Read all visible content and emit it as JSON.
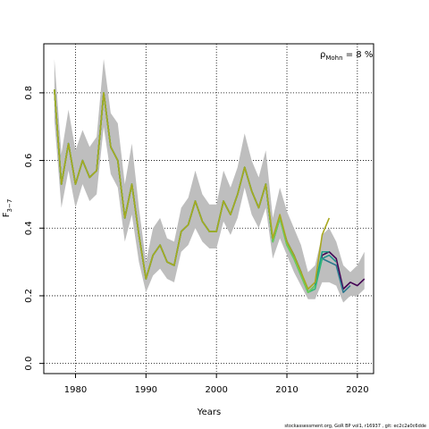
{
  "chart_data": {
    "type": "line",
    "title": "",
    "xlabel": "Years",
    "ylabel_main": "F",
    "ylabel_sub": "3−7",
    "annotation": {
      "rho": "ρ",
      "rho_sub": "Mohn",
      "text": " = 8 %"
    },
    "footer": "stockassessment.org, GoR BP vol1, r16937 , git: ec2c2a0c6dde",
    "xlim": [
      1975.5,
      2022.3
    ],
    "ylim": [
      -0.03,
      0.945
    ],
    "x_ticks": [
      1980,
      1990,
      2000,
      2010,
      2020
    ],
    "y_ticks": [
      0.0,
      0.2,
      0.4,
      0.6,
      0.8
    ],
    "x_tick_labels": [
      "1980",
      "1990",
      "2000",
      "2010",
      "2020"
    ],
    "y_tick_labels": [
      "0.0",
      "0.2",
      "0.4",
      "0.6",
      "0.8"
    ],
    "grid": true,
    "band_color": "#bebebe",
    "band": {
      "x": [
        1977,
        1978,
        1979,
        1980,
        1981,
        1982,
        1983,
        1984,
        1985,
        1986,
        1987,
        1988,
        1989,
        1990,
        1991,
        1992,
        1993,
        1994,
        1995,
        1996,
        1997,
        1998,
        1999,
        2000,
        2001,
        2002,
        2003,
        2004,
        2005,
        2006,
        2007,
        2008,
        2009,
        2010,
        2011,
        2012,
        2013,
        2014,
        2015,
        2016,
        2017,
        2018,
        2019,
        2020,
        2021
      ],
      "upper": [
        0.9,
        0.62,
        0.75,
        0.63,
        0.69,
        0.64,
        0.67,
        0.9,
        0.74,
        0.71,
        0.53,
        0.65,
        0.46,
        0.3,
        0.4,
        0.43,
        0.37,
        0.36,
        0.46,
        0.49,
        0.57,
        0.5,
        0.47,
        0.47,
        0.57,
        0.52,
        0.58,
        0.68,
        0.6,
        0.55,
        0.63,
        0.43,
        0.52,
        0.45,
        0.4,
        0.35,
        0.27,
        0.29,
        0.38,
        0.4,
        0.36,
        0.29,
        0.27,
        0.29,
        0.33
      ],
      "lower": [
        0.72,
        0.46,
        0.57,
        0.46,
        0.53,
        0.48,
        0.5,
        0.7,
        0.56,
        0.52,
        0.36,
        0.44,
        0.3,
        0.21,
        0.26,
        0.28,
        0.25,
        0.24,
        0.33,
        0.35,
        0.4,
        0.36,
        0.34,
        0.34,
        0.42,
        0.38,
        0.43,
        0.52,
        0.44,
        0.4,
        0.46,
        0.31,
        0.37,
        0.32,
        0.27,
        0.23,
        0.19,
        0.19,
        0.24,
        0.24,
        0.23,
        0.18,
        0.2,
        0.2,
        0.22
      ]
    },
    "series": [
      {
        "color": "#440154",
        "x": [
          1977,
          1978,
          1979,
          1980,
          1981,
          1982,
          1983,
          1984,
          1985,
          1986,
          1987,
          1988,
          1989,
          1990,
          1991,
          1992,
          1993,
          1994,
          1995,
          1996,
          1997,
          1998,
          1999,
          2000,
          2001,
          2002,
          2003,
          2004,
          2005,
          2006,
          2007,
          2008,
          2009,
          2010,
          2011,
          2012,
          2013,
          2014,
          2015,
          2016,
          2017,
          2018,
          2019,
          2020,
          2021
        ],
        "values": [
          0.81,
          0.53,
          0.65,
          0.53,
          0.6,
          0.55,
          0.57,
          0.8,
          0.64,
          0.6,
          0.43,
          0.53,
          0.38,
          0.25,
          0.32,
          0.35,
          0.3,
          0.29,
          0.39,
          0.41,
          0.48,
          0.42,
          0.39,
          0.39,
          0.48,
          0.44,
          0.5,
          0.58,
          0.51,
          0.46,
          0.53,
          0.36,
          0.43,
          0.36,
          0.32,
          0.27,
          0.21,
          0.23,
          0.32,
          0.33,
          0.31,
          0.22,
          0.24,
          0.23,
          0.25
        ]
      },
      {
        "color": "#2a788e",
        "x": [
          1977,
          1978,
          1979,
          1980,
          1981,
          1982,
          1983,
          1984,
          1985,
          1986,
          1987,
          1988,
          1989,
          1990,
          1991,
          1992,
          1993,
          1994,
          1995,
          1996,
          1997,
          1998,
          1999,
          2000,
          2001,
          2002,
          2003,
          2004,
          2005,
          2006,
          2007,
          2008,
          2009,
          2010,
          2011,
          2012,
          2013,
          2014,
          2015,
          2016,
          2017,
          2018,
          2019
        ],
        "values": [
          0.81,
          0.53,
          0.65,
          0.53,
          0.6,
          0.55,
          0.57,
          0.8,
          0.64,
          0.6,
          0.43,
          0.53,
          0.38,
          0.25,
          0.32,
          0.35,
          0.3,
          0.29,
          0.39,
          0.41,
          0.48,
          0.42,
          0.39,
          0.39,
          0.48,
          0.44,
          0.5,
          0.58,
          0.51,
          0.46,
          0.53,
          0.36,
          0.43,
          0.36,
          0.32,
          0.27,
          0.21,
          0.23,
          0.31,
          0.3,
          0.29,
          0.21,
          0.23
        ]
      },
      {
        "color": "#21918c",
        "x": [
          1977,
          1978,
          1979,
          1980,
          1981,
          1982,
          1983,
          1984,
          1985,
          1986,
          1987,
          1988,
          1989,
          1990,
          1991,
          1992,
          1993,
          1994,
          1995,
          1996,
          1997,
          1998,
          1999,
          2000,
          2001,
          2002,
          2003,
          2004,
          2005,
          2006,
          2007,
          2008,
          2009,
          2010,
          2011,
          2012,
          2013,
          2014,
          2015,
          2016,
          2017
        ],
        "values": [
          0.81,
          0.53,
          0.65,
          0.53,
          0.6,
          0.55,
          0.57,
          0.8,
          0.64,
          0.6,
          0.43,
          0.53,
          0.38,
          0.25,
          0.32,
          0.35,
          0.3,
          0.29,
          0.39,
          0.41,
          0.48,
          0.42,
          0.39,
          0.39,
          0.48,
          0.44,
          0.5,
          0.58,
          0.51,
          0.46,
          0.53,
          0.36,
          0.43,
          0.36,
          0.32,
          0.27,
          0.21,
          0.23,
          0.31,
          0.32,
          0.3
        ]
      },
      {
        "color": "#1f9e89",
        "x": [
          1977,
          1978,
          1979,
          1980,
          1981,
          1982,
          1983,
          1984,
          1985,
          1986,
          1987,
          1988,
          1989,
          1990,
          1991,
          1992,
          1993,
          1994,
          1995,
          1996,
          1997,
          1998,
          1999,
          2000,
          2001,
          2002,
          2003,
          2004,
          2005,
          2006,
          2007,
          2008,
          2009,
          2010,
          2011,
          2012,
          2013,
          2014,
          2015,
          2016
        ],
        "values": [
          0.81,
          0.53,
          0.65,
          0.53,
          0.6,
          0.55,
          0.57,
          0.8,
          0.64,
          0.6,
          0.43,
          0.53,
          0.38,
          0.25,
          0.32,
          0.35,
          0.3,
          0.29,
          0.39,
          0.41,
          0.48,
          0.42,
          0.39,
          0.39,
          0.48,
          0.44,
          0.5,
          0.58,
          0.51,
          0.46,
          0.53,
          0.36,
          0.43,
          0.35,
          0.31,
          0.26,
          0.21,
          0.23,
          0.33,
          0.33
        ]
      },
      {
        "color": "#35b779",
        "x": [
          1977,
          1978,
          1979,
          1980,
          1981,
          1982,
          1983,
          1984,
          1985,
          1986,
          1987,
          1988,
          1989,
          1990,
          1991,
          1992,
          1993,
          1994,
          1995,
          1996,
          1997,
          1998,
          1999,
          2000,
          2001,
          2002,
          2003,
          2004,
          2005,
          2006,
          2007,
          2008,
          2009,
          2010,
          2011,
          2012,
          2013,
          2014,
          2015
        ],
        "values": [
          0.81,
          0.53,
          0.65,
          0.53,
          0.6,
          0.55,
          0.57,
          0.8,
          0.64,
          0.6,
          0.43,
          0.53,
          0.38,
          0.25,
          0.32,
          0.35,
          0.3,
          0.29,
          0.39,
          0.41,
          0.48,
          0.42,
          0.39,
          0.39,
          0.48,
          0.44,
          0.5,
          0.58,
          0.51,
          0.46,
          0.53,
          0.36,
          0.43,
          0.35,
          0.31,
          0.26,
          0.21,
          0.22,
          0.31
        ]
      },
      {
        "color": "#6ece58",
        "x": [
          1977,
          1978,
          1979,
          1980,
          1981,
          1982,
          1983,
          1984,
          1985,
          1986,
          1987,
          1988,
          1989,
          1990,
          1991,
          1992,
          1993,
          1994,
          1995,
          1996,
          1997,
          1998,
          1999,
          2000,
          2001,
          2002,
          2003,
          2004,
          2005,
          2006,
          2007,
          2008,
          2009,
          2010,
          2011,
          2012,
          2013,
          2014
        ],
        "values": [
          0.81,
          0.53,
          0.65,
          0.53,
          0.6,
          0.55,
          0.57,
          0.8,
          0.64,
          0.6,
          0.43,
          0.53,
          0.38,
          0.25,
          0.32,
          0.35,
          0.3,
          0.29,
          0.39,
          0.41,
          0.48,
          0.42,
          0.39,
          0.39,
          0.48,
          0.44,
          0.5,
          0.58,
          0.51,
          0.46,
          0.53,
          0.36,
          0.43,
          0.35,
          0.31,
          0.26,
          0.21,
          0.23
        ]
      },
      {
        "color": "#a8a820",
        "x": [
          1977,
          1978,
          1979,
          1980,
          1981,
          1982,
          1983,
          1984,
          1985,
          1986,
          1987,
          1988,
          1989,
          1990,
          1991,
          1992,
          1993,
          1994,
          1995,
          1996,
          1997,
          1998,
          1999,
          2000,
          2001,
          2002,
          2003,
          2004,
          2005,
          2006,
          2007,
          2008,
          2009,
          2010,
          2011,
          2012,
          2013,
          2014,
          2015,
          2016
        ],
        "values": [
          0.81,
          0.53,
          0.65,
          0.53,
          0.6,
          0.55,
          0.57,
          0.8,
          0.64,
          0.6,
          0.43,
          0.53,
          0.38,
          0.25,
          0.32,
          0.35,
          0.3,
          0.29,
          0.39,
          0.41,
          0.48,
          0.42,
          0.39,
          0.39,
          0.48,
          0.44,
          0.5,
          0.58,
          0.51,
          0.46,
          0.53,
          0.37,
          0.44,
          0.36,
          0.32,
          0.27,
          0.22,
          0.24,
          0.38,
          0.43
        ]
      }
    ]
  }
}
